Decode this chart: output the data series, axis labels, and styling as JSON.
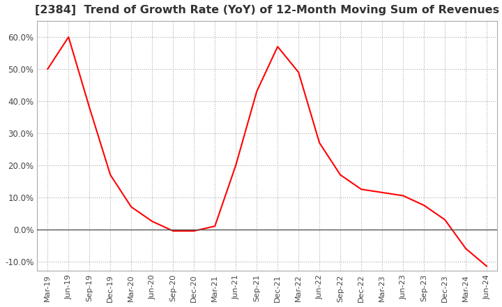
{
  "title": "[2384]  Trend of Growth Rate (YoY) of 12-Month Moving Sum of Revenues",
  "title_fontsize": 11.5,
  "line_color": "#ff0000",
  "background_color": "#ffffff",
  "grid_color": "#aaaaaa",
  "ylim": [
    -0.13,
    0.65
  ],
  "yticks": [
    -0.1,
    0.0,
    0.1,
    0.2,
    0.3,
    0.4,
    0.5,
    0.6
  ],
  "x_labels": [
    "Mar-19",
    "Jun-19",
    "Sep-19",
    "Dec-19",
    "Mar-20",
    "Jun-20",
    "Sep-20",
    "Dec-20",
    "Mar-21",
    "Jun-21",
    "Sep-21",
    "Dec-21",
    "Mar-22",
    "Jun-22",
    "Sep-22",
    "Dec-22",
    "Mar-23",
    "Jun-23",
    "Sep-23",
    "Dec-23",
    "Mar-24",
    "Jun-24"
  ],
  "data": [
    [
      "Mar-19",
      0.5
    ],
    [
      "Jun-19",
      0.6
    ],
    [
      "Sep-19",
      0.38
    ],
    [
      "Dec-19",
      0.17
    ],
    [
      "Mar-20",
      0.07
    ],
    [
      "Jun-20",
      0.025
    ],
    [
      "Sep-20",
      -0.005
    ],
    [
      "Dec-20",
      -0.005
    ],
    [
      "Mar-21",
      0.01
    ],
    [
      "Jun-21",
      0.2
    ],
    [
      "Sep-21",
      0.43
    ],
    [
      "Dec-21",
      0.57
    ],
    [
      "Mar-22",
      0.49
    ],
    [
      "Jun-22",
      0.27
    ],
    [
      "Sep-22",
      0.17
    ],
    [
      "Dec-22",
      0.125
    ],
    [
      "Mar-23",
      0.115
    ],
    [
      "Jun-23",
      0.105
    ],
    [
      "Sep-23",
      0.075
    ],
    [
      "Dec-23",
      0.03
    ],
    [
      "Mar-24",
      -0.06
    ],
    [
      "Jun-24",
      -0.115
    ]
  ]
}
